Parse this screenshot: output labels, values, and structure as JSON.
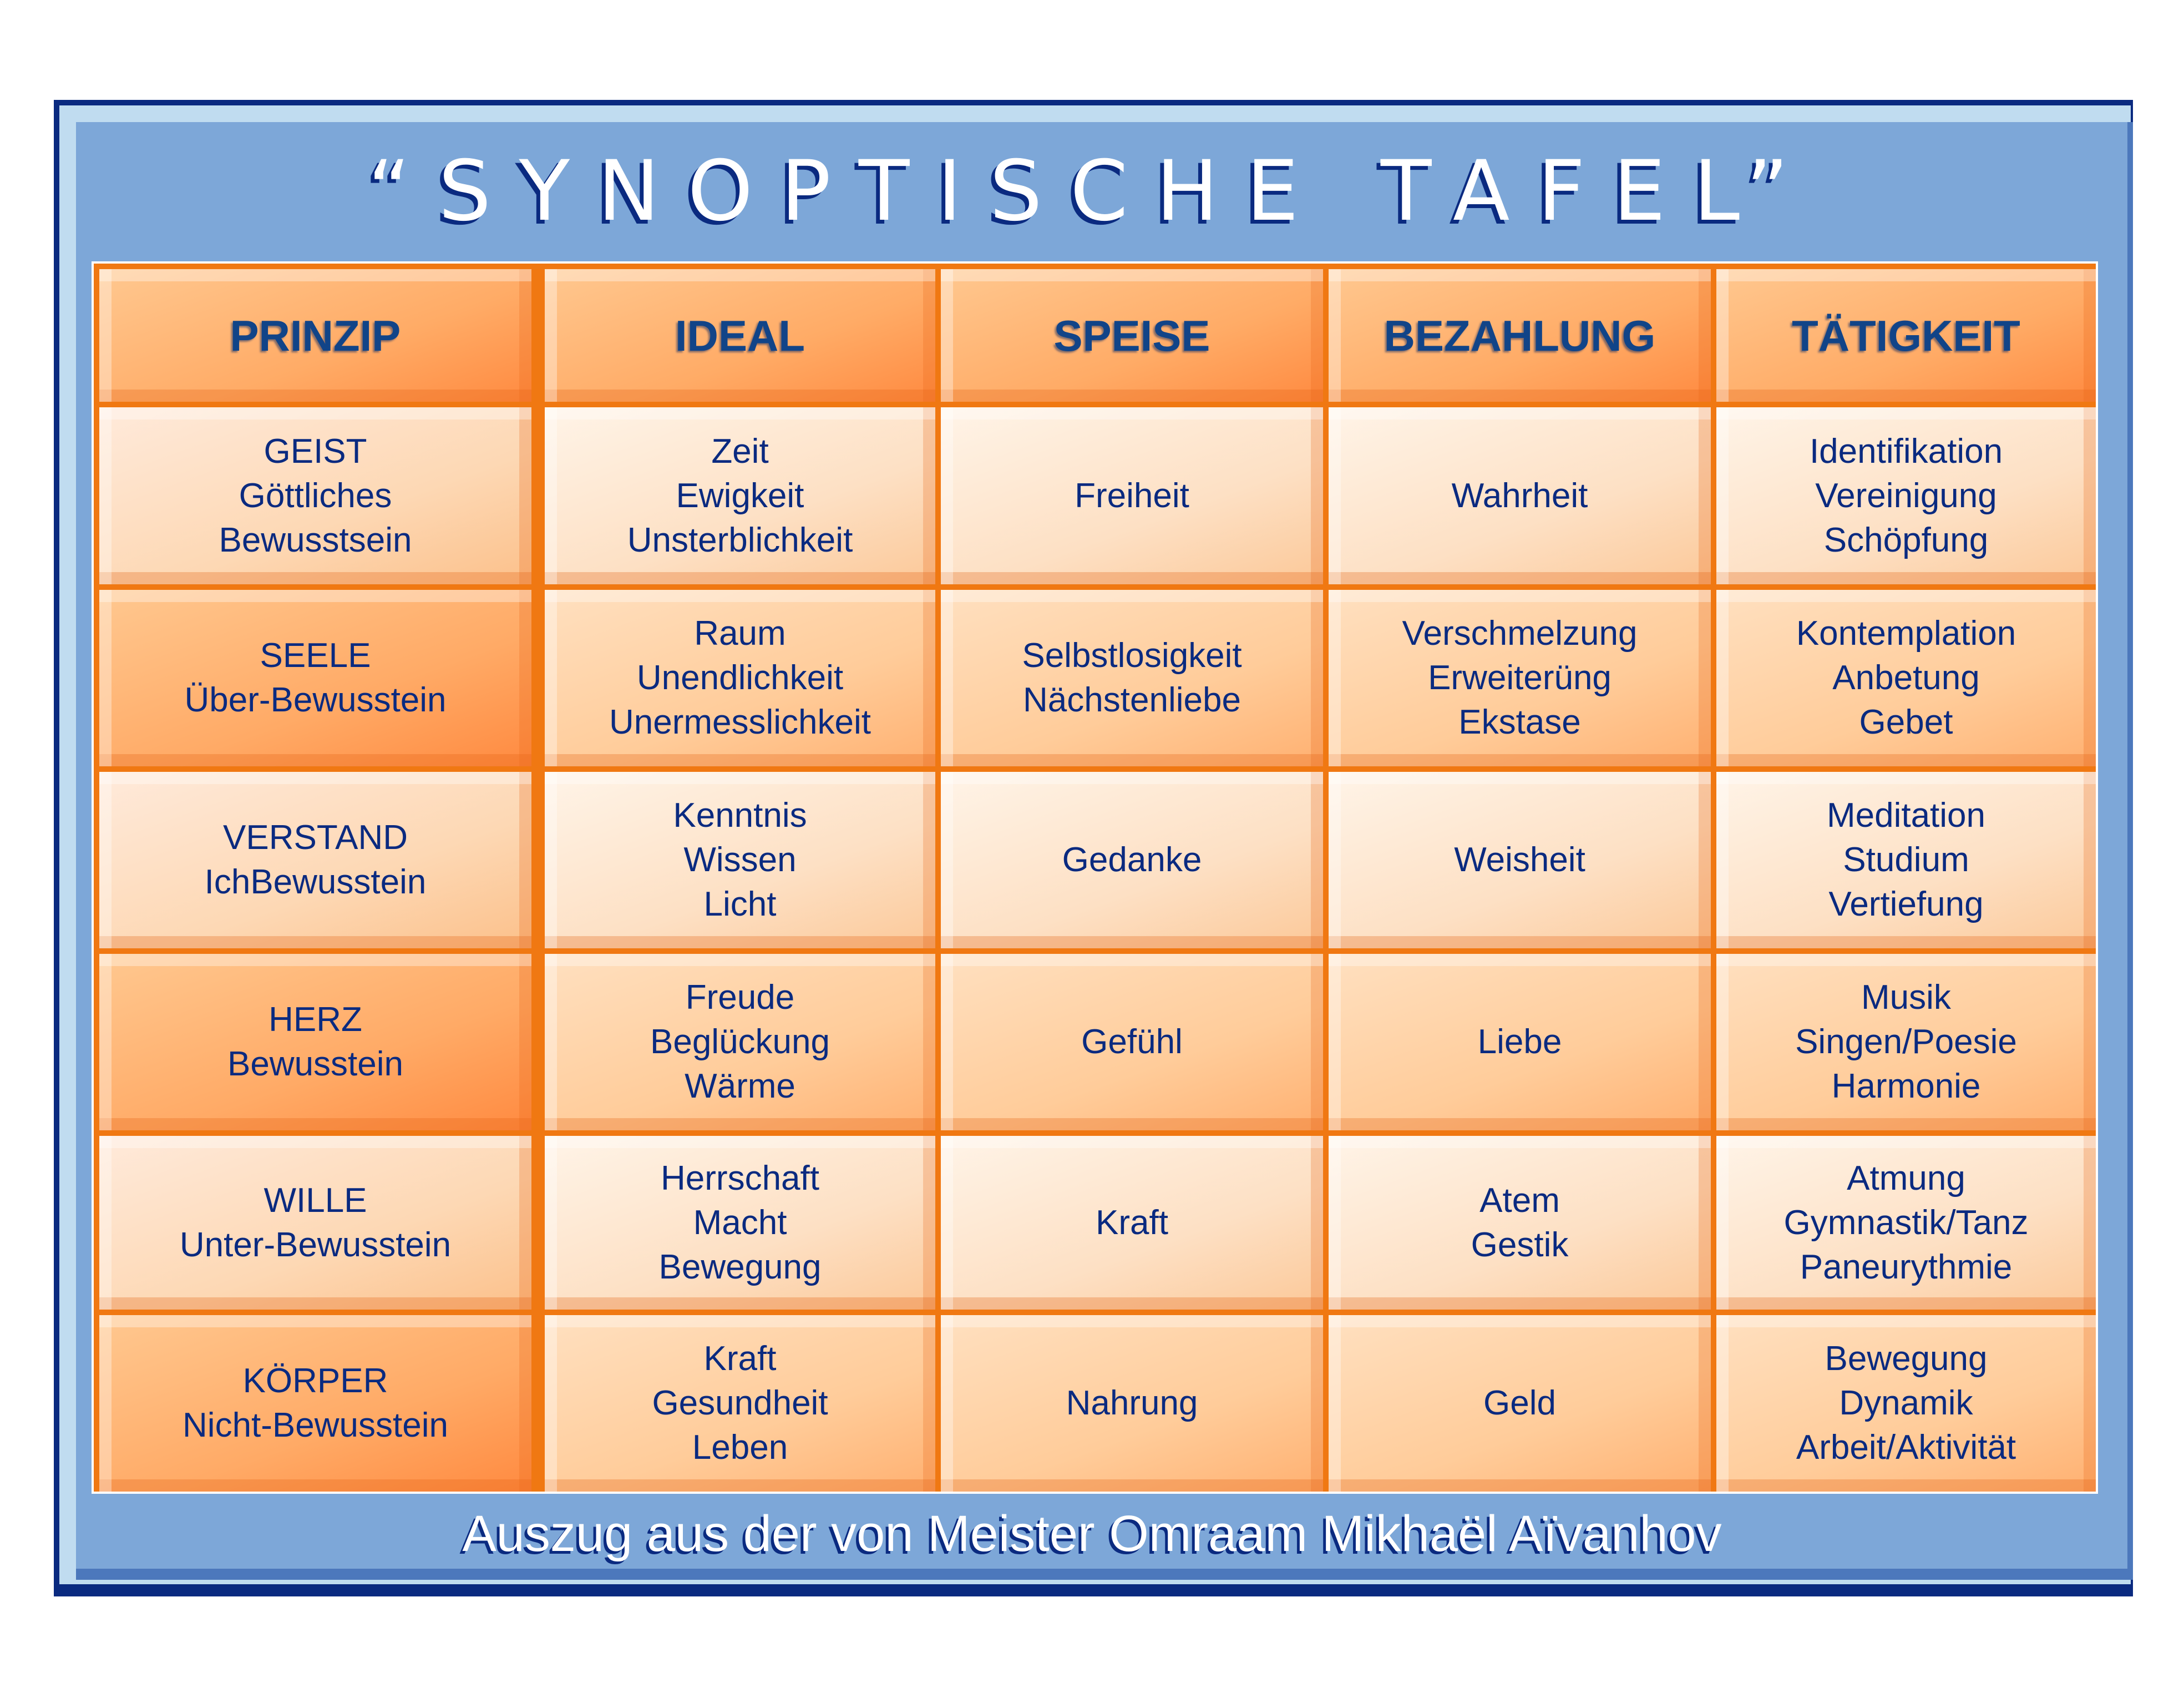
{
  "title": "“SYNOPTISCHE TAFEL”",
  "headers": [
    "PRINZIP",
    "IDEAL",
    "SPEISE",
    "BEZAHLUNG",
    "TÄTIGKEIT"
  ],
  "rows": [
    [
      "GEIST\nGöttliches\nBewusstsein",
      "Zeit\nEwigkeit\nUnsterblichkeit",
      "Freiheit",
      "Wahrheit",
      "Identifikation\nVereinigung\nSchöpfung"
    ],
    [
      "SEELE\nÜber-Bewusstein",
      "Raum\nUnendlichkeit\nUnermesslichkeit",
      "Selbstlosigkeit\nNächstenliebe",
      "Verschmelzung\nErweiterüng\nEkstase",
      "Kontemplation\nAnbetung\nGebet"
    ],
    [
      "VERSTAND\nIchBewusstein",
      "Kenntnis\nWissen\nLicht",
      "Gedanke",
      "Weisheit",
      "Meditation\nStudium\nVertiefung"
    ],
    [
      "HERZ\nBewusstein",
      "Freude\nBeglückung\nWärme",
      "Gefühl",
      "Liebe",
      "Musik\nSingen/Poesie\nHarmonie"
    ],
    [
      "WILLE\nUnter-Bewusstein",
      "Herrschaft\nMacht\nBewegung",
      "Kraft",
      "Atem\nGestik",
      "Atmung\nGymnastik/Tanz\nPaneurythmie"
    ],
    [
      "KÖRPER\nNicht-Bewusstein",
      "Kraft\nGesundheit\nLeben",
      "Nahrung",
      "Geld",
      "Bewegung\nDynamik\nArbeit/Aktivität"
    ]
  ],
  "footer": "Auszug aus der von Meister Omraam Mikhaël Aïvanhov",
  "colors": {
    "frame": "#0a2a80",
    "panel": "#7da7d8",
    "grid": "#f07812",
    "text": "#0a2a80"
  }
}
